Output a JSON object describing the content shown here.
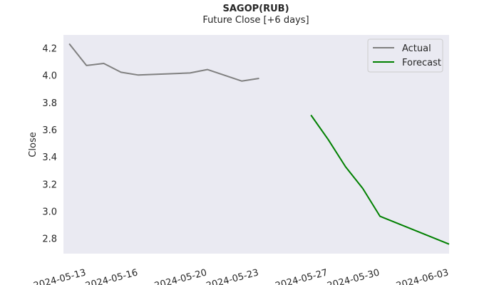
{
  "chart_data": {
    "type": "line",
    "title": "SAGOP(RUB)",
    "subtitle": "Future Close [+6 days]",
    "xlabel": "",
    "ylabel": "Close",
    "ylim": [
      2.69,
      4.3
    ],
    "xlim": [
      "2024-05-11T16:00",
      "2024-06-03T00:00"
    ],
    "grid": false,
    "legend_position": "top-right",
    "y_ticks": [
      2.8,
      3.0,
      3.2,
      3.4,
      3.6,
      3.8,
      4.0,
      4.2
    ],
    "x_ticks": [
      "2024-05-13",
      "2024-05-16",
      "2024-05-20",
      "2024-05-23",
      "2024-05-27",
      "2024-05-30",
      "2024-06-03"
    ],
    "series": [
      {
        "name": "Actual",
        "color": "#808080",
        "points": [
          {
            "x": "2024-05-12",
            "y": 4.235
          },
          {
            "x": "2024-05-13",
            "y": 4.075
          },
          {
            "x": "2024-05-14",
            "y": 4.09
          },
          {
            "x": "2024-05-15",
            "y": 4.025
          },
          {
            "x": "2024-05-16",
            "y": 4.005
          },
          {
            "x": "2024-05-19",
            "y": 4.02
          },
          {
            "x": "2024-05-20",
            "y": 4.045
          },
          {
            "x": "2024-05-22",
            "y": 3.96
          },
          {
            "x": "2024-05-23",
            "y": 3.98
          }
        ]
      },
      {
        "name": "Forecast",
        "color": "#008000",
        "points": [
          {
            "x": "2024-05-26",
            "y": 3.71
          },
          {
            "x": "2024-05-27",
            "y": 3.53
          },
          {
            "x": "2024-05-28",
            "y": 3.33
          },
          {
            "x": "2024-05-29",
            "y": 3.17
          },
          {
            "x": "2024-05-30",
            "y": 2.965
          },
          {
            "x": "2024-06-03",
            "y": 2.76
          }
        ]
      }
    ]
  }
}
